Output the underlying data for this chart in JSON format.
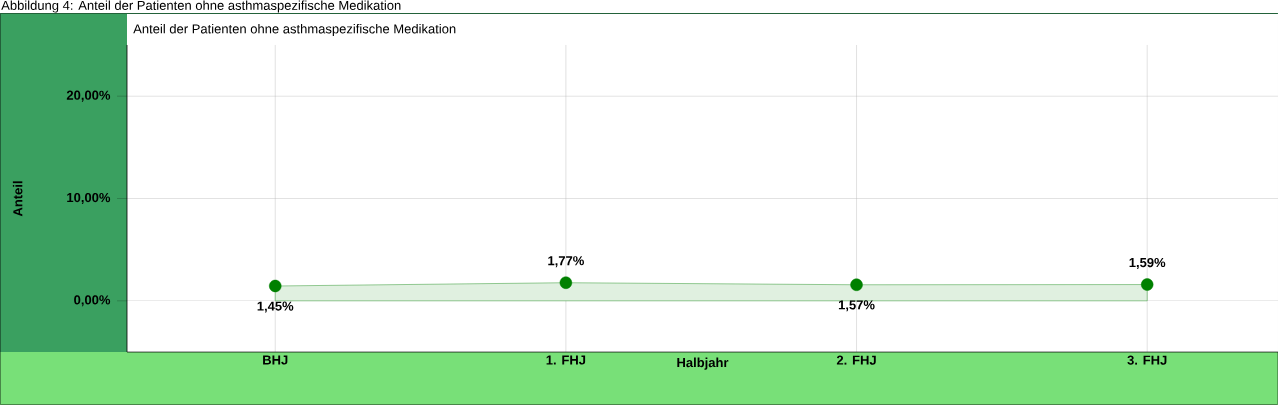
{
  "chart_data": {
    "type": "area",
    "title": "Abbildung 4: Anteil der Patienten ohne asthmaspezifische Medikation",
    "subtitle": "Anteil der Patienten ohne asthmaspezifische Medikation",
    "xlabel": "Halbjahr",
    "ylabel": "Anteil",
    "categories": [
      "BHJ",
      "1. FHJ",
      "2. FHJ",
      "3. FHJ"
    ],
    "series": [
      {
        "color": "#008000",
        "values": [
          1.45,
          1.77,
          1.57,
          1.59
        ],
        "value_labels": [
          "1,45%",
          "1,77%",
          "1,57%",
          "1,59%"
        ]
      }
    ],
    "ylim": [
      -5,
      25
    ],
    "yticks": [
      {
        "value": 0,
        "label": "0,00%"
      },
      {
        "value": 10,
        "label": "10,00%"
      },
      {
        "value": 20,
        "label": "20,00%"
      }
    ],
    "grid": true,
    "legend": false,
    "marker": "circle"
  }
}
